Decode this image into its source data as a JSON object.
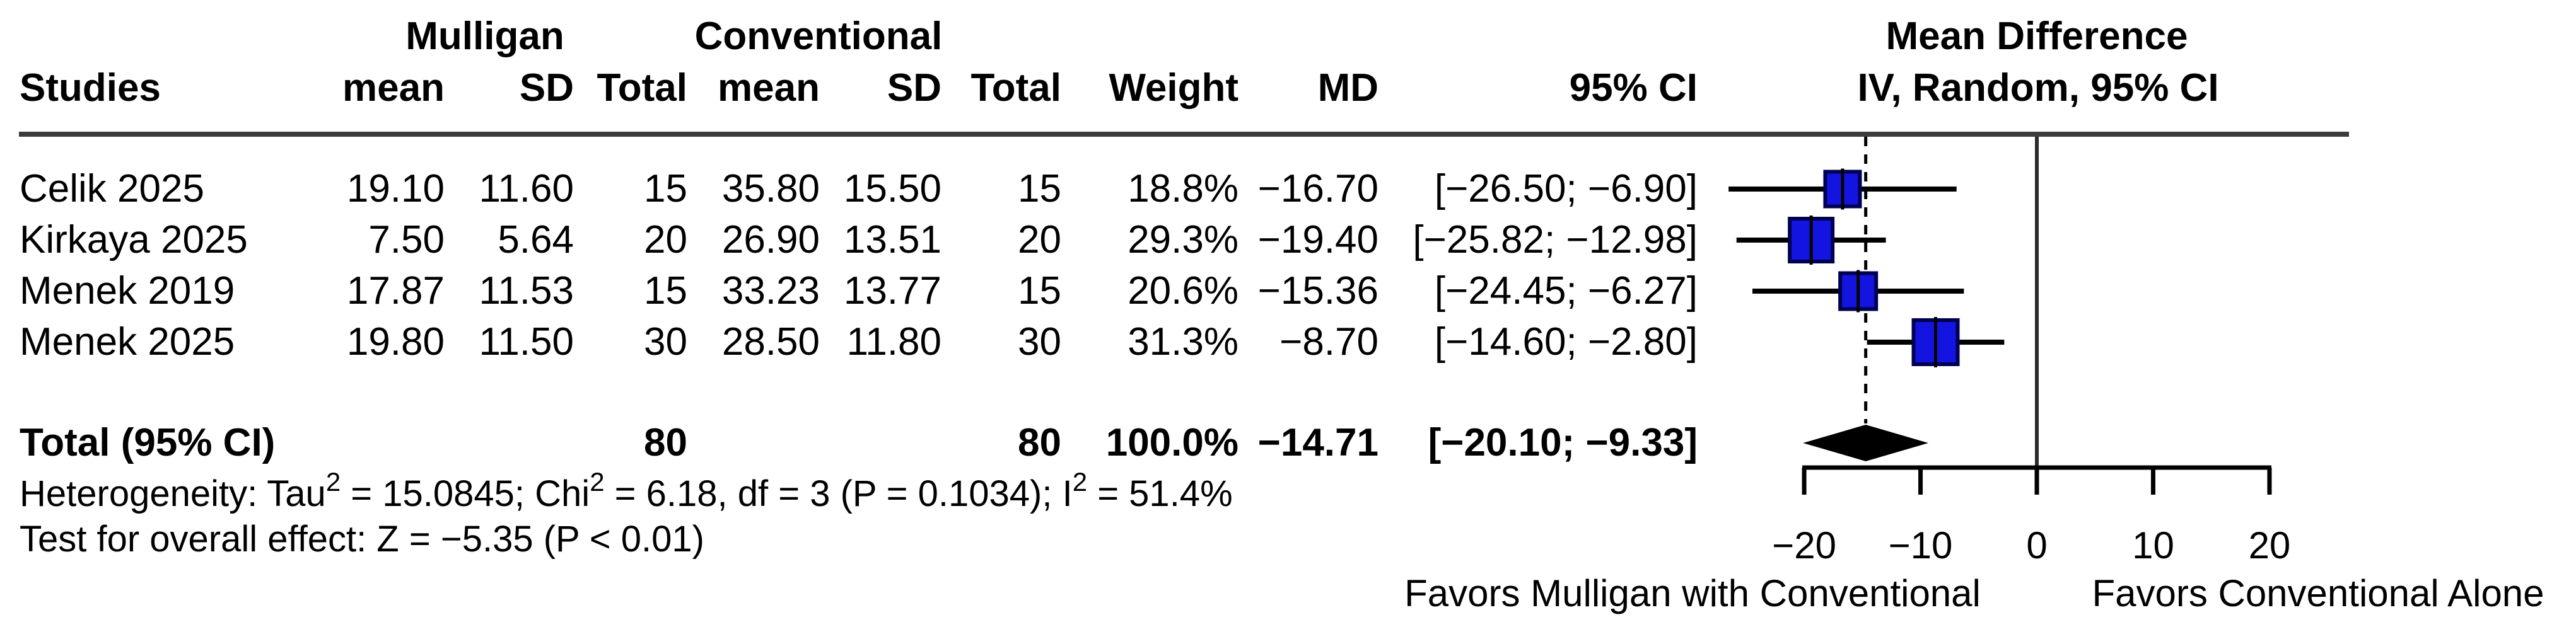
{
  "table": {
    "group_headers": [
      {
        "label": "Mulligan"
      },
      {
        "label": "Conventional"
      }
    ],
    "plot_headers": [
      {
        "label": "Mean Difference"
      },
      {
        "label": "IV, Random, 95% CI"
      }
    ],
    "columns": [
      "Studies",
      "mean",
      "SD",
      "Total",
      "mean",
      "SD",
      "Total",
      "Weight",
      "MD",
      "95% CI"
    ]
  },
  "chart_data": {
    "type": "forest",
    "effect_label": "Mean Difference",
    "model_label": "IV, Random, 95% CI",
    "axis": {
      "ticks": [
        -20,
        -10,
        0,
        10,
        20
      ],
      "zero_line": 0,
      "overall_line": -14.71,
      "xlim": [
        -27.5,
        22
      ]
    },
    "studies": [
      {
        "name": "Celik 2025",
        "t_mean": 19.1,
        "t_sd": 11.6,
        "t_total": 15,
        "c_mean": 35.8,
        "c_sd": 15.5,
        "c_total": 15,
        "weight_pct": 18.8,
        "md": -16.7,
        "ci_low": -26.5,
        "ci_high": -6.9
      },
      {
        "name": "Kirkaya 2025",
        "t_mean": 7.5,
        "t_sd": 5.64,
        "t_total": 20,
        "c_mean": 26.9,
        "c_sd": 13.51,
        "c_total": 20,
        "weight_pct": 29.3,
        "md": -19.4,
        "ci_low": -25.82,
        "ci_high": -12.98
      },
      {
        "name": "Menek 2019",
        "t_mean": 17.87,
        "t_sd": 11.53,
        "t_total": 15,
        "c_mean": 33.23,
        "c_sd": 13.77,
        "c_total": 15,
        "weight_pct": 20.6,
        "md": -15.36,
        "ci_low": -24.45,
        "ci_high": -6.27
      },
      {
        "name": "Menek 2025",
        "t_mean": 19.8,
        "t_sd": 11.5,
        "t_total": 30,
        "c_mean": 28.5,
        "c_sd": 11.8,
        "c_total": 30,
        "weight_pct": 31.3,
        "md": -8.7,
        "ci_low": -14.6,
        "ci_high": -2.8
      }
    ],
    "total": {
      "label": "Total (95% CI)",
      "t_total": 80,
      "c_total": 80,
      "weight_pct": 100.0,
      "md": -14.71,
      "ci_low": -20.1,
      "ci_high": -9.33
    },
    "footer": {
      "heterogeneity_parts": [
        {
          "text": "Heterogeneity: Tau"
        },
        {
          "sup": "2"
        },
        {
          "text": " = 15.0845; Chi"
        },
        {
          "sup": "2"
        },
        {
          "text": " = 6.18, df = 3 (P = 0.1034); I"
        },
        {
          "sup": "2"
        },
        {
          "text": " = 51.4%"
        }
      ],
      "overall_test": "Test for overall effect: Z = −5.35 (P < 0.01)"
    },
    "favors": {
      "left": "Favors Mulligan with Conventional",
      "right": "Favors Conventional Alone"
    },
    "colors": {
      "square_fill": "#1414e0",
      "square_border": "#000050",
      "line": "#000000",
      "zero_line": "#2b2b2b",
      "rule": "#3c3c3c"
    }
  }
}
